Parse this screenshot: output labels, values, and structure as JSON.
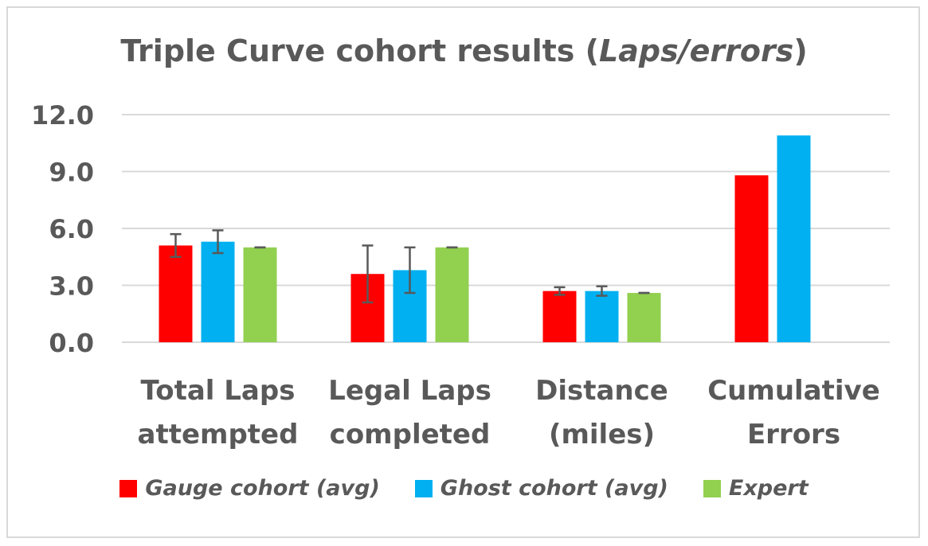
{
  "chart_data": {
    "type": "bar",
    "title_main": "Triple Curve cohort results (",
    "title_italic": "Laps/errors",
    "title_end": ")",
    "categories": [
      [
        "Total Laps",
        "attempted"
      ],
      [
        "Legal Laps",
        "completed"
      ],
      [
        "Distance",
        "(miles)"
      ],
      [
        "Cumulative",
        "Errors"
      ]
    ],
    "series": [
      {
        "name": "Gauge cohort (avg)",
        "color": "#ff0000",
        "values": [
          5.1,
          3.6,
          2.7,
          8.8
        ],
        "error": [
          0.6,
          1.5,
          0.2,
          null
        ]
      },
      {
        "name": "Ghost cohort (avg)",
        "color": "#00b0f0",
        "values": [
          5.3,
          3.8,
          2.7,
          10.9
        ],
        "error": [
          0.6,
          1.2,
          0.25,
          null
        ]
      },
      {
        "name": "Expert",
        "color": "#92d050",
        "values": [
          5.0,
          5.0,
          2.6,
          null
        ],
        "error": [
          0,
          0,
          0,
          null
        ]
      }
    ],
    "yticks": [
      "12.0",
      "9.0",
      "6.0",
      "3.0",
      "0.0"
    ],
    "ylim": [
      0,
      12
    ],
    "grid": true,
    "legend_position": "bottom"
  }
}
